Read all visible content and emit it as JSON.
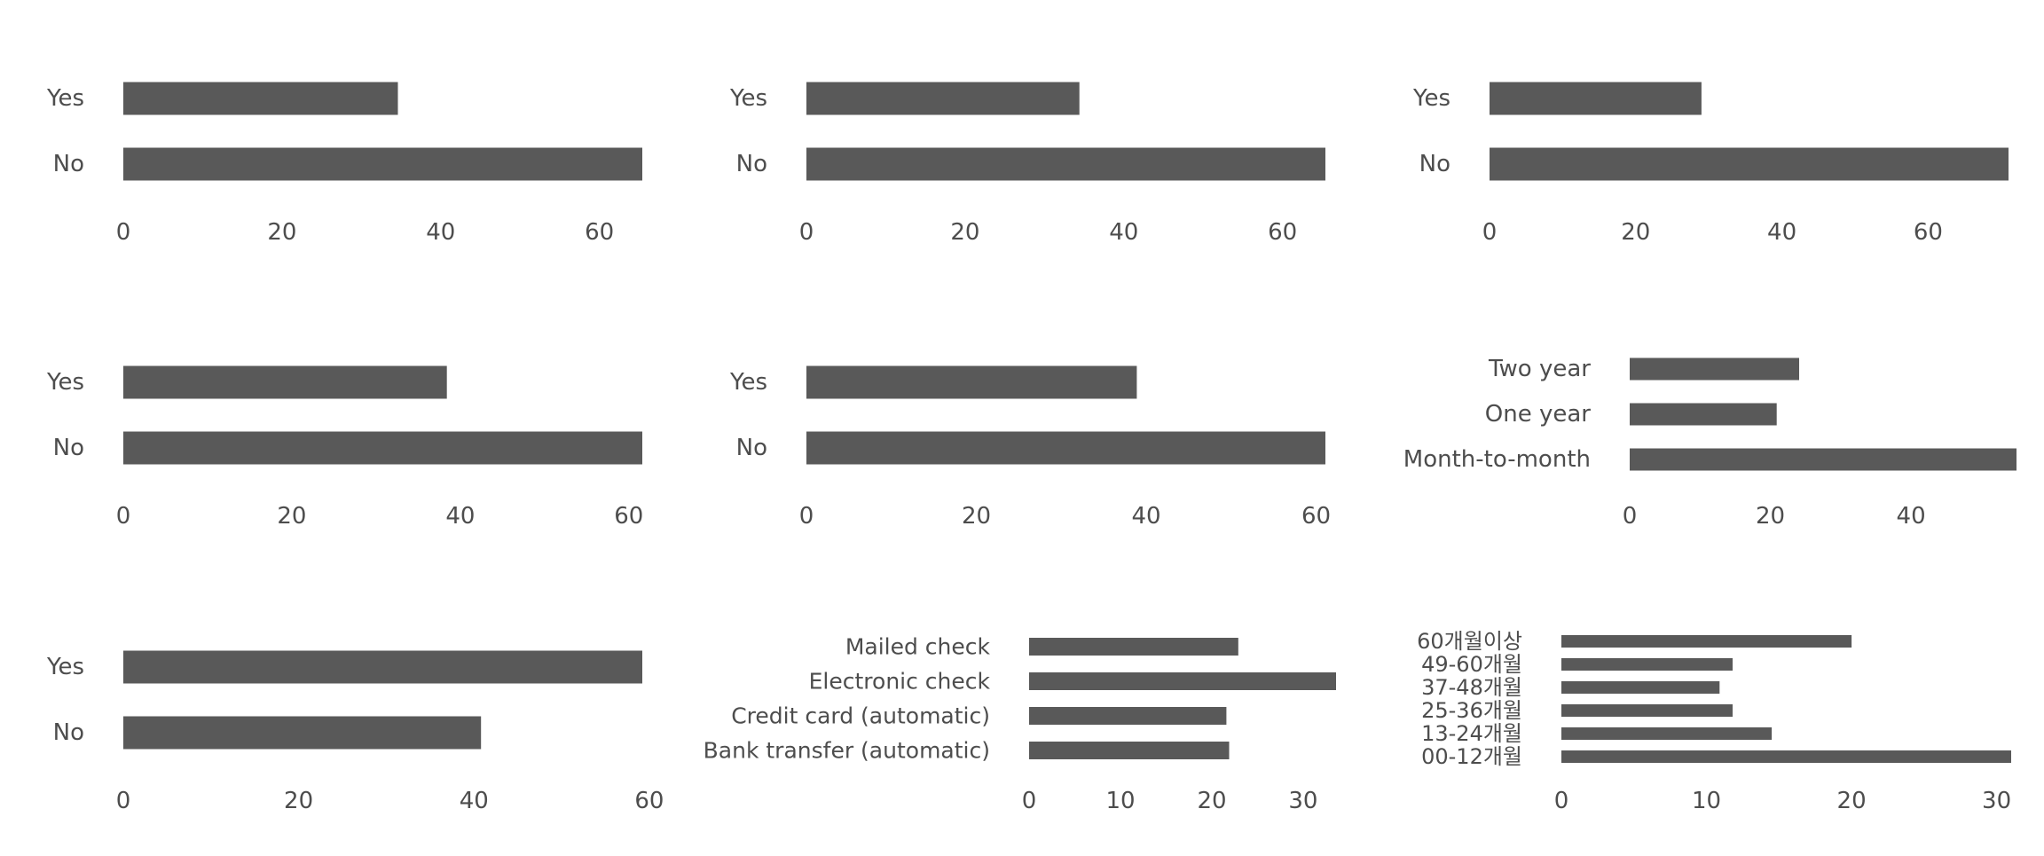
{
  "bar_color": "#595959",
  "label_color": "#4d4d4d",
  "chart_data": [
    {
      "type": "bar",
      "orientation": "horizontal",
      "categories": [
        "No",
        "Yes"
      ],
      "values": [
        65.4,
        34.6
      ],
      "xlim": [
        0,
        65.4
      ],
      "xticks": [
        0,
        20,
        40,
        60
      ],
      "grid": false
    },
    {
      "type": "bar",
      "orientation": "horizontal",
      "categories": [
        "No",
        "Yes"
      ],
      "values": [
        65.4,
        34.4
      ],
      "xlim": [
        0,
        65.4
      ],
      "xticks": [
        0,
        20,
        40,
        60
      ],
      "grid": false
    },
    {
      "type": "bar",
      "orientation": "horizontal",
      "categories": [
        "No",
        "Yes"
      ],
      "values": [
        71.0,
        29.0
      ],
      "xlim": [
        0,
        71.0
      ],
      "xticks": [
        0,
        20,
        40,
        60
      ],
      "grid": false
    },
    {
      "type": "bar",
      "orientation": "horizontal",
      "categories": [
        "No",
        "Yes"
      ],
      "values": [
        61.6,
        38.4
      ],
      "xlim": [
        0,
        61.6
      ],
      "xticks": [
        0,
        20,
        40,
        60
      ],
      "grid": false
    },
    {
      "type": "bar",
      "orientation": "horizontal",
      "categories": [
        "No",
        "Yes"
      ],
      "values": [
        61.1,
        38.9
      ],
      "xlim": [
        0,
        61.1
      ],
      "xticks": [
        0,
        20,
        40,
        60
      ],
      "grid": false
    },
    {
      "type": "bar",
      "orientation": "horizontal",
      "categories": [
        "Month-to-month",
        "One year",
        "Two year"
      ],
      "values": [
        55.0,
        20.9,
        24.1
      ],
      "xlim": [
        0,
        55.0
      ],
      "xticks": [
        0,
        20,
        40
      ],
      "grid": false
    },
    {
      "type": "bar",
      "orientation": "horizontal",
      "categories": [
        "No",
        "Yes"
      ],
      "values": [
        40.8,
        59.2
      ],
      "xlim": [
        0,
        59.2
      ],
      "xticks": [
        0,
        20,
        40,
        60
      ],
      "grid": false
    },
    {
      "type": "bar",
      "orientation": "horizontal",
      "categories": [
        "Bank transfer (automatic)",
        "Credit card (automatic)",
        "Electronic check",
        "Mailed check"
      ],
      "values": [
        21.9,
        21.6,
        33.6,
        22.9
      ],
      "xlim": [
        0,
        33.6
      ],
      "xticks": [
        0,
        10,
        20,
        30
      ],
      "grid": false
    },
    {
      "type": "bar",
      "orientation": "horizontal",
      "categories": [
        "00-12개월",
        "13-24개월",
        "25-36개월",
        "37-48개월",
        "49-60개월",
        "60개월이상"
      ],
      "values": [
        31.0,
        14.5,
        11.8,
        10.9,
        11.8,
        20.0
      ],
      "xlim": [
        0,
        31.0
      ],
      "xticks": [
        0,
        10,
        20,
        30
      ],
      "grid": false
    }
  ]
}
